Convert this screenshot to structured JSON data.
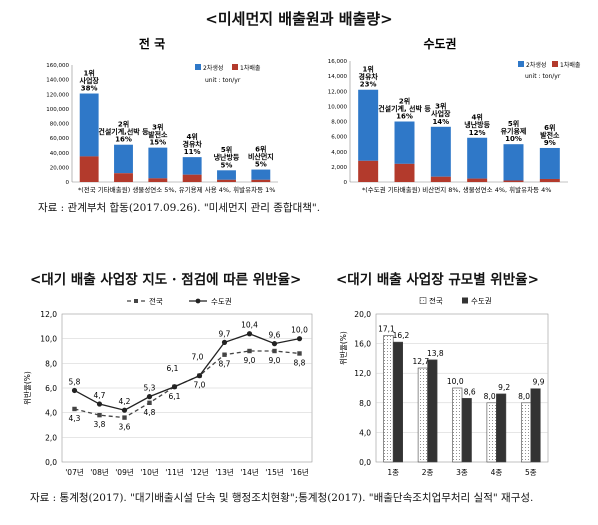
{
  "section1": {
    "title": "<미세먼지 배출원과 배출량>",
    "source": "자료 : 관계부처 합동(2017.09.26). \"미세먼지 관리 종합대책\"."
  },
  "section2": {
    "title": "<대기 배출 사업장 지도 · 점검에 따른 위반율>"
  },
  "section3": {
    "title": "<대기 배출 사업장 규모별 위반율>"
  },
  "footer_source": "자료 : 통계청(2017). \"대기배출시설 단속 및 행정조치현황\";통계청(2017). \"배출단속조치업무처리 실적\" 재구성.",
  "colors": {
    "secondary": "#2f78c8",
    "primary": "#b33a2c",
    "line_national": "#444444",
    "line_capital": "#222222",
    "bar_capital": "#333333"
  },
  "chart_data": [
    {
      "type": "bar",
      "title": "전 국",
      "stacked": true,
      "unit": "unit : ton/yr",
      "ylim": [
        0,
        160000
      ],
      "yticks": [
        "0",
        "20,000",
        "40,000",
        "60,000",
        "80,000",
        "100,000",
        "120,000",
        "140,000",
        "160,000"
      ],
      "legend": [
        "2차생성",
        "1차배출"
      ],
      "legend_position": "top-right",
      "categories": [
        "1위\n사업장\n38%",
        "2위\n건설기계,선박 등\n16%",
        "3위\n발전소\n15%",
        "4위\n경유차\n11%",
        "5위\n냉난방등\n5%",
        "6위\n비산먼지\n5%"
      ],
      "series": [
        {
          "name": "1차배출",
          "values": [
            35000,
            12000,
            5000,
            10000,
            3000,
            3000
          ]
        },
        {
          "name": "2차생성",
          "values": [
            86000,
            39000,
            42000,
            24000,
            13000,
            14000
          ]
        }
      ],
      "footnote": "*(전국 기타배출원) 생물성연소 5%, 유기용제 사용 4%, 휘발유차등 1%"
    },
    {
      "type": "bar",
      "title": "수도권",
      "stacked": true,
      "unit": "unit : ton/yr",
      "ylim": [
        0,
        16000
      ],
      "yticks": [
        "0",
        "2,000",
        "4,000",
        "6,000",
        "8,000",
        "10,000",
        "12,000",
        "14,000",
        "16,000"
      ],
      "legend": [
        "2차생성",
        "1차배출"
      ],
      "legend_position": "top-right",
      "categories": [
        "1위\n경유차\n23%",
        "2위\n건설기계, 선박 등\n16%",
        "3위\n사업장\n14%",
        "4위\n냉난방등\n12%",
        "5위\n유기용제\n10%",
        "6위\n발전소\n9%"
      ],
      "series": [
        {
          "name": "1차배출",
          "values": [
            2800,
            2400,
            700,
            450,
            200,
            400
          ]
        },
        {
          "name": "2차생성",
          "values": [
            9400,
            5600,
            6600,
            5400,
            4800,
            4100
          ]
        }
      ],
      "footnote": "*(수도권 기타배출원) 비산먼지 8%, 생물성연소 4%, 휘발유차등 4%"
    },
    {
      "type": "line",
      "ylabel": "위반율(%)",
      "ylim": [
        0,
        12
      ],
      "yticks": [
        "0,0",
        "2,0",
        "4,0",
        "6,0",
        "8,0",
        "10,0",
        "12,0"
      ],
      "legend_position": "top",
      "categories": [
        "'07년",
        "'08년",
        "'09년",
        "'10년",
        "'11년",
        "'12년",
        "'13년",
        "'14년",
        "'15년",
        "'16년"
      ],
      "series": [
        {
          "name": "전국",
          "values": [
            4.3,
            3.8,
            3.6,
            4.8,
            6.1,
            7.0,
            8.7,
            9.0,
            9.0,
            8.8
          ],
          "labels": [
            "4,3",
            "3,8",
            "3,6",
            "4,8",
            "6,1",
            "7,0",
            "8,7",
            "9,0",
            "9,0",
            "8,8"
          ]
        },
        {
          "name": "수도권",
          "values": [
            5.8,
            4.7,
            4.2,
            5.3,
            6.1,
            7.0,
            9.7,
            10.4,
            9.6,
            10.0
          ],
          "labels": [
            "5,8",
            "4,7",
            "4,2",
            "5,3",
            "6,1",
            "7,0",
            "9,7",
            "10,4",
            "9,6",
            "10,0"
          ]
        }
      ]
    },
    {
      "type": "bar",
      "ylabel": "위반율(%)",
      "ylim": [
        0,
        20
      ],
      "yticks": [
        "0,0",
        "4,0",
        "8,0",
        "12,0",
        "16,0",
        "20,0"
      ],
      "legend_position": "top",
      "categories": [
        "1종",
        "2종",
        "3종",
        "4종",
        "5종"
      ],
      "series": [
        {
          "name": "전국",
          "values": [
            17.1,
            12.7,
            10.0,
            8.0,
            8.0
          ],
          "labels": [
            "17,1",
            "12,7",
            "10,0",
            "8,0",
            "8,0"
          ]
        },
        {
          "name": "수도권",
          "values": [
            16.2,
            13.8,
            8.6,
            9.2,
            9.9
          ],
          "labels": [
            "16,2",
            "13,8",
            "8,6",
            "9,2",
            "9,9"
          ]
        }
      ]
    }
  ]
}
